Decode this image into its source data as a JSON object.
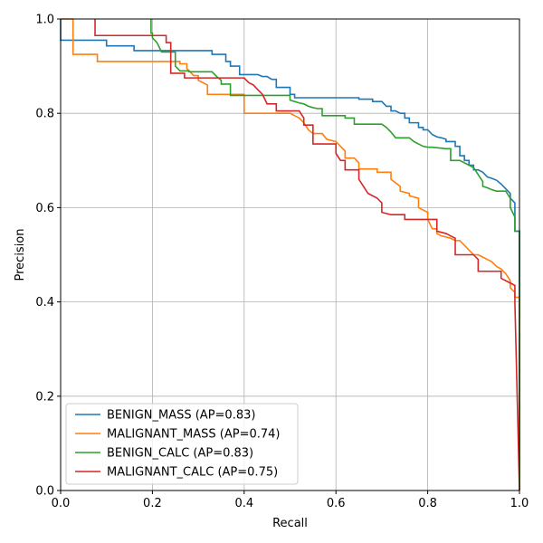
{
  "chart_data": {
    "type": "line",
    "title": "",
    "xlabel": "Recall",
    "ylabel": "Precision",
    "xlim": [
      0.0,
      1.0
    ],
    "ylim": [
      0.0,
      1.0
    ],
    "grid": true,
    "legend_position": "lower-left",
    "x_ticks": [
      "0.0",
      "0.2",
      "0.4",
      "0.6",
      "0.8",
      "1.0"
    ],
    "y_ticks": [
      "0.0",
      "0.2",
      "0.4",
      "0.6",
      "0.8",
      "1.0"
    ],
    "series": [
      {
        "name": "BENIGN_MASS (AP=0.83)",
        "color": "#1f77b4",
        "x": [
          0.0,
          0.0,
          0.0,
          0.05,
          0.1,
          0.1,
          0.16,
          0.16,
          0.24,
          0.27,
          0.33,
          0.33,
          0.36,
          0.36,
          0.37,
          0.37,
          0.39,
          0.39,
          0.43,
          0.44,
          0.45,
          0.46,
          0.47,
          0.47,
          0.5,
          0.5,
          0.51,
          0.51,
          0.65,
          0.65,
          0.68,
          0.68,
          0.7,
          0.71,
          0.72,
          0.72,
          0.73,
          0.74,
          0.75,
          0.75,
          0.76,
          0.76,
          0.78,
          0.78,
          0.79,
          0.79,
          0.8,
          0.81,
          0.82,
          0.83,
          0.84,
          0.84,
          0.86,
          0.86,
          0.87,
          0.87,
          0.88,
          0.88,
          0.89,
          0.89,
          0.9,
          0.9,
          0.91,
          0.92,
          0.93,
          0.94,
          0.95,
          0.96,
          0.97,
          0.98,
          0.98,
          0.99,
          0.99,
          1.0,
          1.0
        ],
        "y": [
          1.0,
          1.0,
          0.955,
          0.955,
          0.955,
          0.943,
          0.943,
          0.933,
          0.933,
          0.933,
          0.933,
          0.925,
          0.925,
          0.91,
          0.91,
          0.9,
          0.9,
          0.882,
          0.882,
          0.878,
          0.878,
          0.872,
          0.872,
          0.855,
          0.855,
          0.84,
          0.84,
          0.833,
          0.833,
          0.83,
          0.83,
          0.825,
          0.825,
          0.815,
          0.815,
          0.805,
          0.805,
          0.8,
          0.8,
          0.79,
          0.79,
          0.78,
          0.78,
          0.77,
          0.77,
          0.765,
          0.765,
          0.755,
          0.75,
          0.748,
          0.745,
          0.74,
          0.74,
          0.73,
          0.73,
          0.71,
          0.71,
          0.7,
          0.7,
          0.69,
          0.69,
          0.68,
          0.68,
          0.675,
          0.665,
          0.662,
          0.658,
          0.65,
          0.64,
          0.63,
          0.62,
          0.61,
          0.55,
          0.55,
          0.0
        ]
      },
      {
        "name": "MALIGNANT_MASS (AP=0.74)",
        "color": "#ff7f0e",
        "x": [
          0.0,
          0.027,
          0.027,
          0.08,
          0.08,
          0.26,
          0.26,
          0.275,
          0.275,
          0.29,
          0.3,
          0.3,
          0.32,
          0.32,
          0.36,
          0.4,
          0.4,
          0.44,
          0.5,
          0.51,
          0.52,
          0.53,
          0.54,
          0.55,
          0.57,
          0.58,
          0.6,
          0.61,
          0.62,
          0.62,
          0.64,
          0.65,
          0.65,
          0.69,
          0.69,
          0.72,
          0.72,
          0.74,
          0.74,
          0.76,
          0.76,
          0.78,
          0.78,
          0.8,
          0.8,
          0.81,
          0.82,
          0.82,
          0.83,
          0.85,
          0.86,
          0.87,
          0.88,
          0.89,
          0.9,
          0.91,
          0.92,
          0.93,
          0.94,
          0.95,
          0.96,
          0.97,
          0.98,
          0.98,
          0.99,
          0.99,
          1.0,
          1.0
        ],
        "y": [
          1.0,
          1.0,
          0.925,
          0.925,
          0.91,
          0.91,
          0.905,
          0.905,
          0.895,
          0.88,
          0.88,
          0.87,
          0.86,
          0.84,
          0.84,
          0.84,
          0.8,
          0.8,
          0.8,
          0.795,
          0.79,
          0.78,
          0.765,
          0.757,
          0.757,
          0.745,
          0.74,
          0.73,
          0.72,
          0.705,
          0.705,
          0.695,
          0.682,
          0.682,
          0.675,
          0.675,
          0.66,
          0.645,
          0.635,
          0.63,
          0.625,
          0.62,
          0.6,
          0.59,
          0.575,
          0.555,
          0.555,
          0.545,
          0.54,
          0.535,
          0.53,
          0.53,
          0.52,
          0.51,
          0.5,
          0.5,
          0.495,
          0.49,
          0.485,
          0.475,
          0.47,
          0.46,
          0.445,
          0.43,
          0.42,
          0.41,
          0.41,
          0.0
        ]
      },
      {
        "name": "BENIGN_CALC (AP=0.83)",
        "color": "#2ca02c",
        "x": [
          0.197,
          0.197,
          0.2,
          0.2,
          0.21,
          0.22,
          0.23,
          0.25,
          0.25,
          0.26,
          0.26,
          0.28,
          0.28,
          0.33,
          0.34,
          0.35,
          0.35,
          0.37,
          0.37,
          0.4,
          0.5,
          0.5,
          0.52,
          0.53,
          0.54,
          0.55,
          0.56,
          0.57,
          0.57,
          0.62,
          0.62,
          0.64,
          0.64,
          0.7,
          0.71,
          0.72,
          0.73,
          0.76,
          0.77,
          0.78,
          0.79,
          0.8,
          0.81,
          0.84,
          0.85,
          0.85,
          0.87,
          0.88,
          0.89,
          0.9,
          0.91,
          0.92,
          0.92,
          0.93,
          0.94,
          0.95,
          0.97,
          0.98,
          0.98,
          0.99,
          0.99,
          1.0,
          1.0
        ],
        "y": [
          1.0,
          0.97,
          0.97,
          0.96,
          0.95,
          0.93,
          0.93,
          0.93,
          0.9,
          0.89,
          0.89,
          0.89,
          0.888,
          0.888,
          0.878,
          0.87,
          0.862,
          0.862,
          0.838,
          0.838,
          0.838,
          0.828,
          0.822,
          0.82,
          0.815,
          0.812,
          0.81,
          0.81,
          0.795,
          0.795,
          0.79,
          0.79,
          0.777,
          0.777,
          0.77,
          0.76,
          0.748,
          0.748,
          0.74,
          0.735,
          0.73,
          0.728,
          0.728,
          0.725,
          0.725,
          0.7,
          0.7,
          0.695,
          0.69,
          0.685,
          0.67,
          0.655,
          0.645,
          0.642,
          0.638,
          0.635,
          0.635,
          0.62,
          0.6,
          0.58,
          0.55,
          0.55,
          0.0
        ]
      },
      {
        "name": "MALIGNANT_CALC (AP=0.75)",
        "color": "#d62728",
        "x": [
          0.075,
          0.075,
          0.23,
          0.23,
          0.24,
          0.24,
          0.27,
          0.27,
          0.35,
          0.4,
          0.41,
          0.42,
          0.43,
          0.44,
          0.45,
          0.47,
          0.47,
          0.52,
          0.53,
          0.53,
          0.55,
          0.55,
          0.6,
          0.6,
          0.61,
          0.62,
          0.62,
          0.65,
          0.65,
          0.66,
          0.67,
          0.68,
          0.69,
          0.7,
          0.7,
          0.72,
          0.75,
          0.75,
          0.82,
          0.82,
          0.84,
          0.85,
          0.86,
          0.86,
          0.9,
          0.91,
          0.91,
          0.96,
          0.96,
          0.98,
          0.99,
          0.99,
          1.0
        ],
        "y": [
          1.0,
          0.965,
          0.965,
          0.95,
          0.95,
          0.885,
          0.885,
          0.875,
          0.875,
          0.875,
          0.865,
          0.86,
          0.85,
          0.84,
          0.82,
          0.82,
          0.805,
          0.805,
          0.79,
          0.775,
          0.775,
          0.735,
          0.735,
          0.715,
          0.7,
          0.7,
          0.68,
          0.68,
          0.66,
          0.645,
          0.63,
          0.625,
          0.62,
          0.61,
          0.59,
          0.585,
          0.585,
          0.575,
          0.575,
          0.55,
          0.545,
          0.54,
          0.535,
          0.5,
          0.5,
          0.49,
          0.465,
          0.465,
          0.45,
          0.44,
          0.435,
          0.4,
          0.0
        ]
      }
    ]
  }
}
